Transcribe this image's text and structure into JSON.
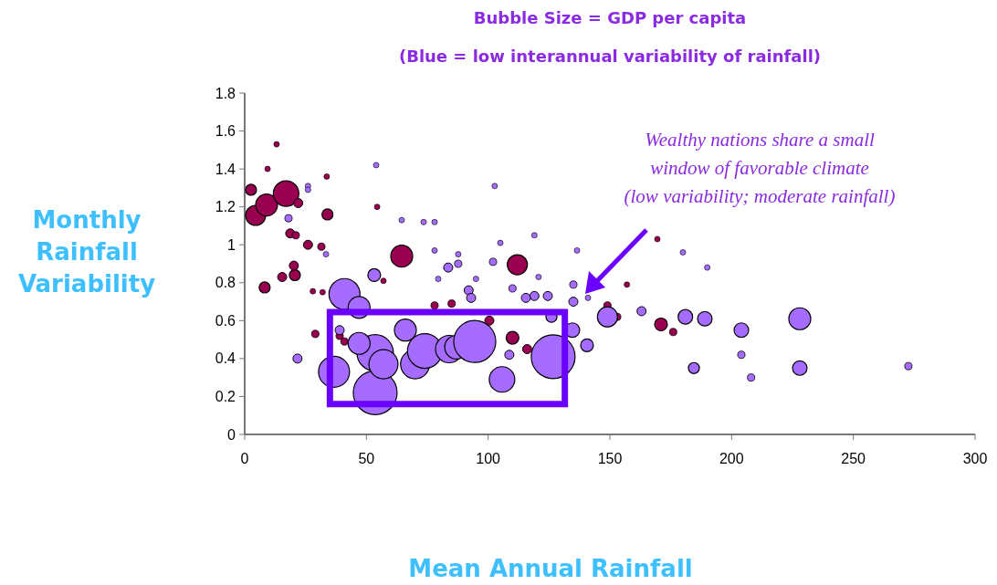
{
  "chart_data": {
    "type": "bubble",
    "title": "Bubble Size = GDP per capita",
    "subtitle": "(Blue = low interannual variability of rainfall)",
    "xlabel": "Mean Annual Rainfall",
    "ylabel": "Monthly Rainfall Variability",
    "xlim": [
      0,
      300
    ],
    "xticks": [
      0,
      50,
      100,
      150,
      200,
      250,
      300
    ],
    "ylim": [
      0,
      1.8
    ],
    "yticks": [
      0,
      0.2,
      0.4,
      0.6,
      0.8,
      1,
      1.2,
      1.4,
      1.6,
      1.8
    ],
    "grid": false,
    "annotations": [
      "Wealthy nations share a small\nwindow of favorable climate\n(low variability; moderate rainfall)"
    ],
    "series": [
      {
        "color": "#990050",
        "x": [
          2.6,
          4.5,
          9,
          17,
          9.4,
          13.1,
          22,
          18.7,
          21,
          26,
          31.5,
          34,
          8.2,
          15.4,
          20.6,
          20.2,
          28,
          32,
          33.7,
          54.4,
          64.5,
          112,
          29,
          39,
          41,
          100.5,
          110,
          116,
          149,
          153,
          171,
          176,
          169.5,
          157,
          57,
          78,
          85
        ],
        "values": [
          1.29,
          1.155,
          1.21,
          1.27,
          1.4,
          1.53,
          1.22,
          1.06,
          1.05,
          1,
          0.99,
          1.16,
          0.775,
          0.83,
          0.84,
          0.89,
          0.755,
          0.75,
          1.36,
          1.2,
          0.94,
          0.895,
          0.53,
          0.52,
          0.49,
          0.6,
          0.51,
          0.45,
          0.68,
          0.62,
          0.58,
          0.54,
          1.03,
          0.79,
          0.81,
          0.68,
          0.69
        ],
        "sizes": [
          0.063,
          0.21,
          0.25,
          0.34,
          0.016,
          0.016,
          0.043,
          0.043,
          0.028,
          0.043,
          0.028,
          0.063,
          0.063,
          0.043,
          0.063,
          0.043,
          0.016,
          0.016,
          0.016,
          0.016,
          0.25,
          0.21,
          0.028,
          0.028,
          0.028,
          0.043,
          0.085,
          0.043,
          0.028,
          0.028,
          0.085,
          0.028,
          0.016,
          0.016,
          0.016,
          0.028,
          0.028
        ]
      },
      {
        "color": "#a66cff",
        "x": [
          18,
          54,
          26,
          26,
          33.4,
          53.2,
          41,
          47,
          39,
          36.7,
          21.7,
          53.6,
          53.6,
          47,
          57,
          66,
          70,
          74,
          84,
          87,
          94.5,
          105.7,
          126.7,
          108.7,
          126,
          134.6,
          140.6,
          149,
          163,
          181,
          189,
          204,
          204,
          184.5,
          208,
          228,
          228,
          272.6,
          180,
          190,
          102.7,
          73.5,
          78,
          78,
          87.7,
          87.7,
          83.6,
          102,
          119,
          105,
          136.5,
          79.5,
          95,
          120.7,
          110,
          135,
          92,
          93,
          119,
          124.5,
          115.5,
          135,
          64.5,
          141
        ],
        "values": [
          1.14,
          1.42,
          1.31,
          1.29,
          0.95,
          0.84,
          0.74,
          0.67,
          0.55,
          0.33,
          0.4,
          0.22,
          0.43,
          0.48,
          0.37,
          0.55,
          0.37,
          0.44,
          0.45,
          0.46,
          0.49,
          0.29,
          0.41,
          0.42,
          0.62,
          0.55,
          0.47,
          0.62,
          0.65,
          0.62,
          0.61,
          0.55,
          0.42,
          0.35,
          0.3,
          0.61,
          0.35,
          0.36,
          0.96,
          0.88,
          1.31,
          1.12,
          1.12,
          0.97,
          0.95,
          0.9,
          0.88,
          0.91,
          1.05,
          1.01,
          0.97,
          0.82,
          0.82,
          0.83,
          0.77,
          0.79,
          0.76,
          0.72,
          0.73,
          0.73,
          0.72,
          0.7,
          1.13,
          0.72
        ],
        "sizes": [
          0.028,
          0.016,
          0.016,
          0.016,
          0.016,
          0.085,
          0.5,
          0.25,
          0.043,
          0.5,
          0.043,
          1,
          0.69,
          0.25,
          0.44,
          0.25,
          0.44,
          0.63,
          0.39,
          0.29,
          0.92,
          0.34,
          1,
          0.043,
          0.063,
          0.11,
          0.085,
          0.21,
          0.043,
          0.11,
          0.11,
          0.11,
          0.028,
          0.063,
          0.028,
          0.25,
          0.11,
          0.028,
          0.016,
          0.016,
          0.016,
          0.016,
          0.016,
          0.016,
          0.016,
          0.028,
          0.043,
          0.028,
          0.016,
          0.016,
          0.016,
          0.016,
          0.016,
          0.016,
          0.028,
          0.028,
          0.043,
          0.043,
          0.043,
          0.043,
          0.043,
          0.043,
          0.016,
          0.016
        ]
      }
    ]
  }
}
